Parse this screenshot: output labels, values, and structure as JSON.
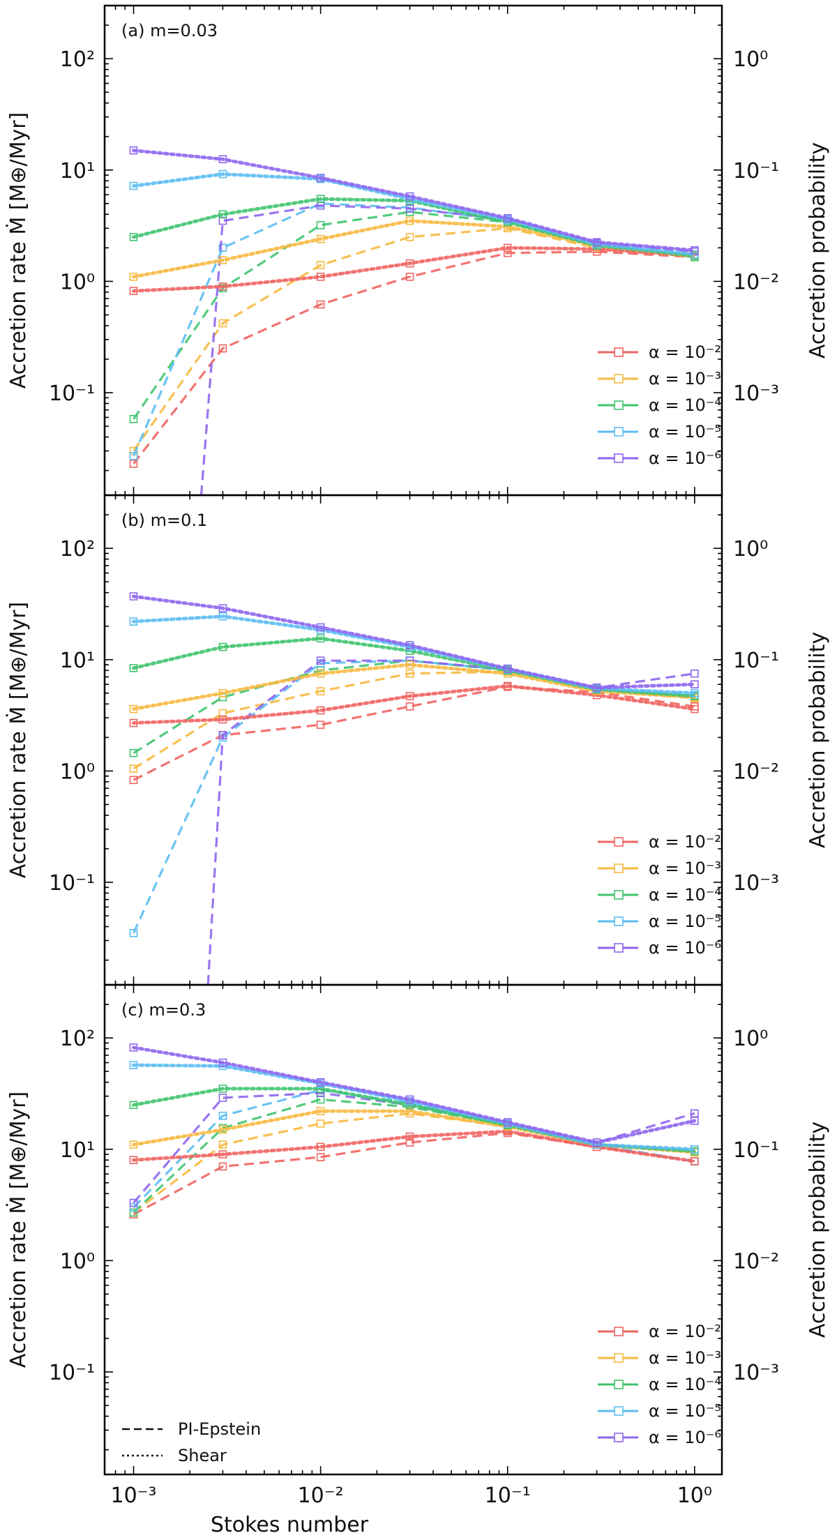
{
  "figure": {
    "xlabel": "Stokes number",
    "ylabel_left": "Accretion rate Ṁ [M⊕/Myr]",
    "ylabel_right": "Accretion probability",
    "style_legend": [
      {
        "label": "PI-Epstein",
        "dash": "dashed"
      },
      {
        "label": "Shear",
        "dash": "dotted"
      }
    ],
    "alpha_legend": [
      "α = 10⁻²",
      "α = 10⁻³",
      "α = 10⁻⁴",
      "α = 10⁻⁵",
      "α = 10⁻⁶"
    ],
    "colors": [
      "#ef6461",
      "#f7b940",
      "#3fc46e",
      "#5bbcf2",
      "#8e66ee"
    ],
    "x_ticks": [
      {
        "value": 0.001,
        "label": "10⁻³"
      },
      {
        "value": 0.01,
        "label": "10⁻²"
      },
      {
        "value": 0.1,
        "label": "10⁻¹"
      },
      {
        "value": 1,
        "label": "10⁰"
      }
    ],
    "y_ticks_left": [
      {
        "value": 0.1,
        "label": "10⁻¹"
      },
      {
        "value": 1,
        "label": "10⁰"
      },
      {
        "value": 10,
        "label": "10¹"
      },
      {
        "value": 100,
        "label": "10²"
      }
    ],
    "y_ticks_right": [
      {
        "value": 0.001,
        "label": "10⁻³"
      },
      {
        "value": 0.01,
        "label": "10⁻²"
      },
      {
        "value": 0.1,
        "label": "10⁻¹"
      },
      {
        "value": 1,
        "label": "10⁰"
      }
    ]
  },
  "chart_data": [
    {
      "type": "line",
      "panel_label": "(a) m=0.03",
      "x": [
        0.001,
        0.003,
        0.01,
        0.03,
        0.1,
        0.3,
        1
      ],
      "xlim": [
        0.0007,
        1.4
      ],
      "ylim": [
        0.012,
        300
      ],
      "ylim_right": [
        0.00012,
        3
      ],
      "series": [
        {
          "name": "α = 10⁻²",
          "model": "PI-Epstein",
          "values": [
            0.023,
            0.25,
            0.62,
            1.1,
            1.8,
            1.85,
            1.65
          ]
        },
        {
          "name": "α = 10⁻³",
          "model": "PI-Epstein",
          "values": [
            0.03,
            0.42,
            1.4,
            2.5,
            3.0,
            2.0,
            1.65
          ]
        },
        {
          "name": "α = 10⁻⁴",
          "model": "PI-Epstein",
          "values": [
            0.058,
            0.87,
            3.2,
            4.2,
            3.4,
            2.1,
            1.65
          ]
        },
        {
          "name": "α = 10⁻⁵",
          "model": "PI-Epstein",
          "values": [
            0.027,
            2.0,
            5.0,
            4.6,
            3.5,
            2.1,
            1.7
          ]
        },
        {
          "name": "α = 10⁻⁶",
          "model": "PI-Epstein",
          "values": [
            null,
            3.5,
            4.8,
            4.5,
            3.6,
            2.2,
            1.85
          ]
        },
        {
          "name": "α = 10⁻²",
          "model": "Shear",
          "values": [
            0.82,
            0.9,
            1.1,
            1.45,
            2.0,
            1.95,
            1.7
          ]
        },
        {
          "name": "α = 10⁻³",
          "model": "Shear",
          "values": [
            1.1,
            1.55,
            2.4,
            3.5,
            3.1,
            2.1,
            1.7
          ]
        },
        {
          "name": "α = 10⁻⁴",
          "model": "Shear",
          "values": [
            2.5,
            4.0,
            5.5,
            5.3,
            3.4,
            2.1,
            1.7
          ]
        },
        {
          "name": "α = 10⁻⁵",
          "model": "Shear",
          "values": [
            7.2,
            9.2,
            8.3,
            5.5,
            3.6,
            2.15,
            1.75
          ]
        },
        {
          "name": "α = 10⁻⁶",
          "model": "Shear",
          "values": [
            15,
            12.5,
            8.5,
            5.8,
            3.7,
            2.25,
            1.9
          ]
        }
      ],
      "drop": {
        "series": "α = 10⁻⁶",
        "from_x": 0.003,
        "to_x": 0.0023,
        "to_y": 0.012
      }
    },
    {
      "type": "line",
      "panel_label": "(b) m=0.1",
      "x": [
        0.001,
        0.003,
        0.01,
        0.03,
        0.1,
        0.3,
        1
      ],
      "xlim": [
        0.0007,
        1.4
      ],
      "ylim": [
        0.012,
        300
      ],
      "ylim_right": [
        0.00012,
        3
      ],
      "series": [
        {
          "name": "α = 10⁻²",
          "model": "PI-Epstein",
          "values": [
            0.83,
            2.1,
            2.6,
            3.8,
            5.7,
            5.1,
            3.8
          ]
        },
        {
          "name": "α = 10⁻³",
          "model": "PI-Epstein",
          "values": [
            1.05,
            3.3,
            5.2,
            7.5,
            7.8,
            5.3,
            4.5
          ]
        },
        {
          "name": "α = 10⁻⁴",
          "model": "PI-Epstein",
          "values": [
            1.45,
            4.6,
            8.0,
            9.8,
            8.0,
            5.4,
            4.7
          ]
        },
        {
          "name": "α = 10⁻⁵",
          "model": "PI-Epstein",
          "values": [
            0.035,
            2.0,
            9.3,
            9.8,
            8.1,
            5.5,
            4.8
          ]
        },
        {
          "name": "α = 10⁻⁶",
          "model": "PI-Epstein",
          "values": [
            null,
            2.1,
            9.8,
            9.8,
            8.2,
            5.6,
            7.5
          ]
        },
        {
          "name": "α = 10⁻²",
          "model": "Shear",
          "values": [
            2.7,
            2.9,
            3.5,
            4.7,
            5.8,
            4.8,
            3.6
          ]
        },
        {
          "name": "α = 10⁻³",
          "model": "Shear",
          "values": [
            3.6,
            5.0,
            7.5,
            9.0,
            7.5,
            5.2,
            4.6
          ]
        },
        {
          "name": "α = 10⁻⁴",
          "model": "Shear",
          "values": [
            8.4,
            13,
            15.5,
            12,
            8.0,
            5.4,
            4.7
          ]
        },
        {
          "name": "α = 10⁻⁵",
          "model": "Shear",
          "values": [
            22,
            24.5,
            18.5,
            13,
            8.2,
            5.5,
            5.0
          ]
        },
        {
          "name": "α = 10⁻⁶",
          "model": "Shear",
          "values": [
            37,
            29,
            19.5,
            13.5,
            8.3,
            5.6,
            6.0
          ]
        }
      ],
      "drop": {
        "series": "α = 10⁻⁶",
        "from_x": 0.003,
        "to_x": 0.0025,
        "to_y": 0.012
      }
    },
    {
      "type": "line",
      "panel_label": "(c) m=0.3",
      "x": [
        0.001,
        0.003,
        0.01,
        0.03,
        0.1,
        0.3,
        1
      ],
      "xlim": [
        0.0007,
        1.4
      ],
      "ylim": [
        0.012,
        300
      ],
      "ylim_right": [
        0.00012,
        3
      ],
      "series": [
        {
          "name": "α = 10⁻²",
          "model": "PI-Epstein",
          "values": [
            2.6,
            7.0,
            8.5,
            11.5,
            14.0,
            10.5,
            7.8
          ]
        },
        {
          "name": "α = 10⁻³",
          "model": "PI-Epstein",
          "values": [
            2.7,
            11,
            17,
            21,
            16,
            11,
            9.4
          ]
        },
        {
          "name": "α = 10⁻⁴",
          "model": "PI-Epstein",
          "values": [
            2.7,
            15.5,
            28,
            24,
            16.5,
            11,
            9.6
          ]
        },
        {
          "name": "α = 10⁻⁵",
          "model": "PI-Epstein",
          "values": [
            3.0,
            20,
            34,
            26,
            17,
            11,
            7.8
          ]
        },
        {
          "name": "α = 10⁻⁶",
          "model": "PI-Epstein",
          "values": [
            3.3,
            29,
            32,
            25,
            17,
            11.5,
            21
          ]
        },
        {
          "name": "α = 10⁻²",
          "model": "Shear",
          "values": [
            8.0,
            9.0,
            10.5,
            13,
            14.5,
            10.5,
            7.8
          ]
        },
        {
          "name": "α = 10⁻³",
          "model": "Shear",
          "values": [
            11,
            15,
            22,
            22,
            16,
            11,
            9.4
          ]
        },
        {
          "name": "α = 10⁻⁴",
          "model": "Shear",
          "values": [
            25,
            35,
            35,
            25,
            16.5,
            11,
            9.6
          ]
        },
        {
          "name": "α = 10⁻⁵",
          "model": "Shear",
          "values": [
            57,
            56,
            39,
            27,
            17,
            11,
            10
          ]
        },
        {
          "name": "α = 10⁻⁶",
          "model": "Shear",
          "values": [
            82,
            60,
            40,
            28,
            17.5,
            11.5,
            18
          ]
        }
      ],
      "drop": null
    }
  ]
}
